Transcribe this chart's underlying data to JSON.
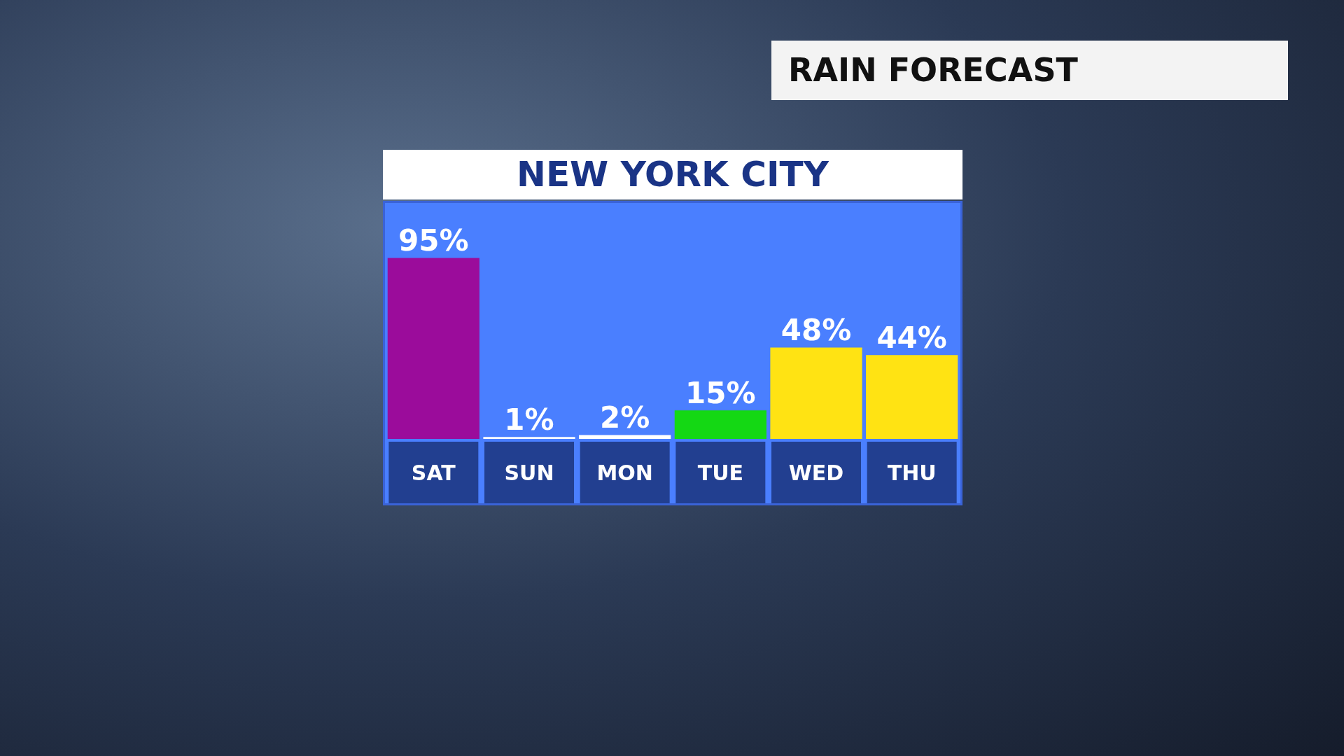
{
  "chart_data": {
    "type": "bar",
    "title": "RAIN FORECAST",
    "subtitle": "NEW YORK CITY",
    "categories": [
      "SAT",
      "SUN",
      "MON",
      "TUE",
      "WED",
      "THU"
    ],
    "values": [
      95,
      1,
      2,
      15,
      48,
      44
    ],
    "colors": [
      "#9b0c9b",
      "#ffffff",
      "#ffffff",
      "#14d814",
      "#ffe313",
      "#ffe313"
    ],
    "data_labels": true,
    "value_labels": [
      "95%",
      "1%",
      "2%",
      "15%",
      "48%",
      "44%"
    ],
    "tick_labels": "x"
  }
}
